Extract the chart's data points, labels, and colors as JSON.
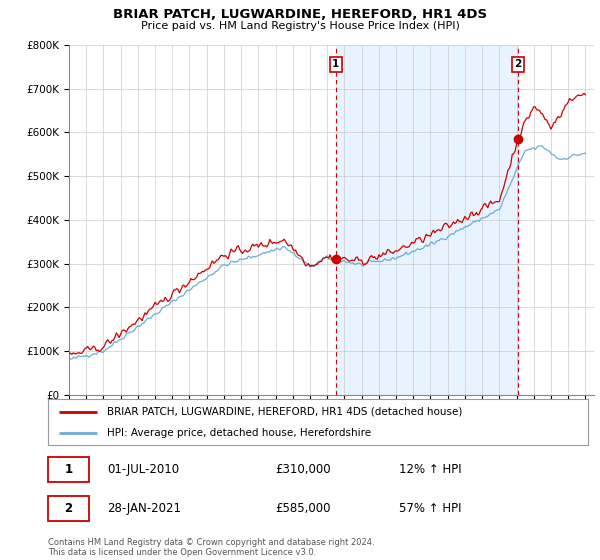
{
  "title": "BRIAR PATCH, LUGWARDINE, HEREFORD, HR1 4DS",
  "subtitle": "Price paid vs. HM Land Registry's House Price Index (HPI)",
  "hpi_legend": "HPI: Average price, detached house, Herefordshire",
  "price_legend": "BRIAR PATCH, LUGWARDINE, HEREFORD, HR1 4DS (detached house)",
  "transaction1_date": "01-JUL-2010",
  "transaction1_price": "£310,000",
  "transaction1_hpi": "12% ↑ HPI",
  "transaction2_date": "28-JAN-2021",
  "transaction2_price": "£585,000",
  "transaction2_hpi": "57% ↑ HPI",
  "footnote": "Contains HM Land Registry data © Crown copyright and database right 2024.\nThis data is licensed under the Open Government Licence v3.0.",
  "ylim_min": 0,
  "ylim_max": 800000,
  "hpi_color": "#6baed6",
  "price_color": "#cc0000",
  "shade_color": "#ddeeff",
  "dashed_line_color": "#cc0000",
  "background_color": "#ffffff",
  "grid_color": "#cccccc",
  "t1_year": 2010.5,
  "t2_year": 2021.08
}
